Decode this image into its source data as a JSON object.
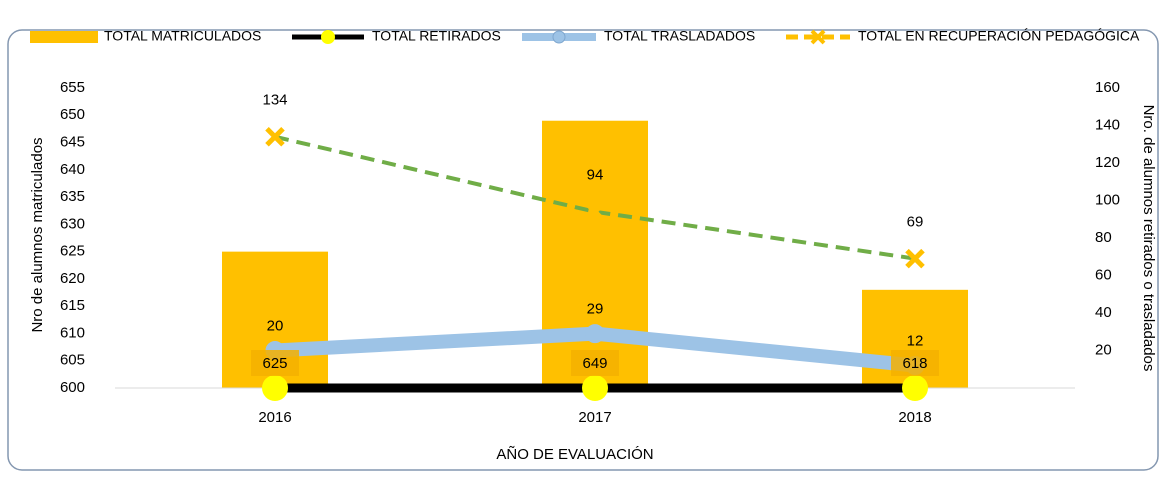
{
  "chart_data": {
    "type": "bar_line",
    "categories": [
      "2016",
      "2017",
      "2018"
    ],
    "series": [
      {
        "name": "TOTAL MATRICULADOS",
        "type": "bar",
        "color": "#ffc000",
        "values": [
          625,
          649,
          618
        ]
      },
      {
        "name": "TOTAL RETIRADOS",
        "type": "line",
        "axis": "y2",
        "color": "#000000",
        "marker_color": "#ffff00",
        "values": [
          0,
          0,
          0
        ]
      },
      {
        "name": "TOTAL TRASLADADOS",
        "type": "line",
        "axis": "y2",
        "color": "#9dc3e6",
        "values": [
          20,
          29,
          12
        ]
      },
      {
        "name": "TOTAL EN RECUPERACIÓN PEDAGÓGICA",
        "type": "line",
        "axis": "y2",
        "color": "#70ad47",
        "marker_color": "#ffc000",
        "dashed": true,
        "values": [
          134,
          94,
          69
        ]
      }
    ],
    "ylabel": "Nro de alumnos matriculados",
    "y2label": "Nro. de alumnos retirados o trasladados",
    "xlabel": "AÑO DE EVALUACIÓN",
    "ylim": [
      600,
      655
    ],
    "yticks": [
      600,
      605,
      610,
      615,
      620,
      625,
      630,
      635,
      640,
      645,
      650,
      655
    ],
    "y2lim": [
      0,
      160
    ],
    "y2ticks": [
      20,
      40,
      60,
      80,
      100,
      120,
      140,
      160
    ],
    "legend": "top",
    "grid": false
  }
}
